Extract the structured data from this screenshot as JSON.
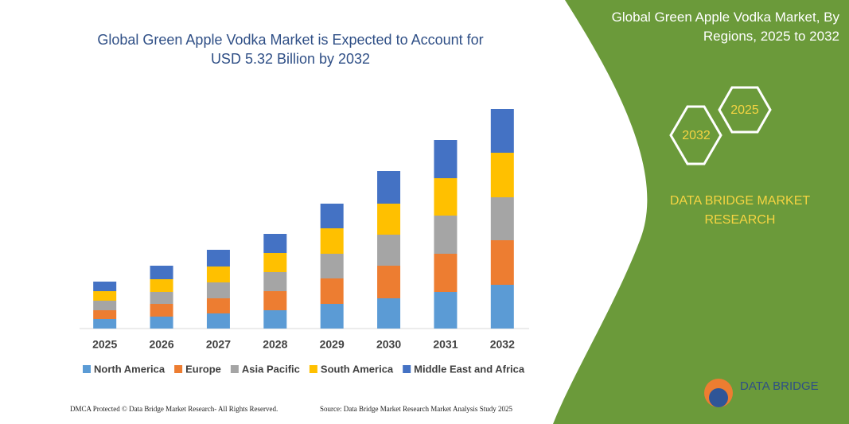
{
  "chart_data": {
    "type": "stacked-bar",
    "title": "Global Green Apple Vodka Market is Expected to Account for USD 5.32 Billion by 2032",
    "categories": [
      "2025",
      "2026",
      "2027",
      "2028",
      "2029",
      "2030",
      "2031",
      "2032"
    ],
    "series": [
      {
        "name": "North America",
        "color": "#5b9bd5",
        "values": [
          12,
          15,
          19,
          23,
          31,
          38,
          46,
          55
        ]
      },
      {
        "name": "Europe",
        "color": "#ed7d31",
        "values": [
          11,
          16,
          19,
          24,
          32,
          41,
          48,
          56
        ]
      },
      {
        "name": "Asia Pacific",
        "color": "#a5a5a5",
        "values": [
          12,
          15,
          20,
          24,
          31,
          39,
          48,
          54
        ]
      },
      {
        "name": "South America",
        "color": "#ffc000",
        "values": [
          12,
          16,
          20,
          24,
          32,
          39,
          47,
          56
        ]
      },
      {
        "name": "Middle East and Africa",
        "color": "#4472c4",
        "values": [
          12,
          17,
          21,
          24,
          31,
          41,
          48,
          55
        ]
      }
    ],
    "ylim": [
      0,
      280
    ],
    "legend": "bottom"
  },
  "panel": {
    "title": "Global Green Apple Vodka Market, By Regions, 2025 to 2032",
    "hexagons": [
      "2025",
      "2032"
    ],
    "brand": "DATA BRIDGE MARKET RESEARCH",
    "logo": "DATA BRIDGE"
  },
  "footer": {
    "left": "DMCA Protected © Data Bridge Market Research- All Rights Reserved.",
    "right": "Source: Data Bridge Market Research Market Analysis Study 2025"
  }
}
